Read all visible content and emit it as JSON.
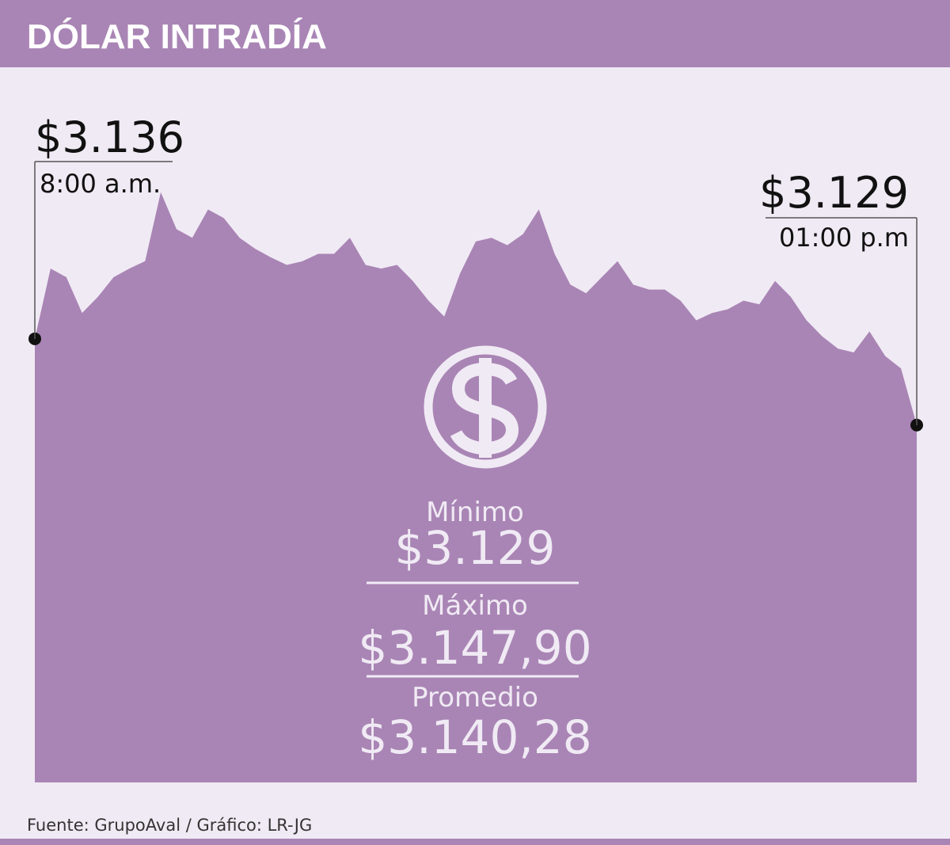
{
  "chart_data": {
    "type": "area",
    "title": "DÓLAR INTRADÍA",
    "color": "#a985b5",
    "ylim": [
      3100,
      3150
    ],
    "values": [
      3136,
      3141.7,
      3141.0,
      3138.1,
      3139.4,
      3141.0,
      3141.7,
      3142.3,
      3147.9,
      3144.9,
      3144.2,
      3146.5,
      3145.8,
      3144.2,
      3143.3,
      3142.6,
      3142.0,
      3142.3,
      3142.9,
      3142.9,
      3144.2,
      3142.0,
      3141.7,
      3142.0,
      3140.7,
      3139.1,
      3137.8,
      3141.3,
      3143.9,
      3144.2,
      3143.6,
      3144.5,
      3146.5,
      3142.9,
      3140.4,
      3139.7,
      3141.0,
      3142.3,
      3140.4,
      3140.0,
      3140.0,
      3139.1,
      3137.5,
      3138.1,
      3138.4,
      3139.1,
      3138.8,
      3140.7,
      3139.4,
      3137.5,
      3136.2,
      3135.2,
      3134.9,
      3136.6,
      3134.6,
      3133.6,
      3129
    ],
    "annotations": {
      "start": {
        "value_label": "$3.136",
        "time": "8:00 a.m."
      },
      "end": {
        "value_label": "$3.129",
        "time": "01:00 p.m"
      }
    },
    "stats": [
      {
        "label": "Mínimo",
        "value": "$3.129"
      },
      {
        "label": "Máximo",
        "value": "$3.147,90"
      },
      {
        "label": "Promedio",
        "value": "$3.140,28"
      }
    ],
    "source": "Fuente:  GrupoAval / Gráfico: LR-JG"
  }
}
